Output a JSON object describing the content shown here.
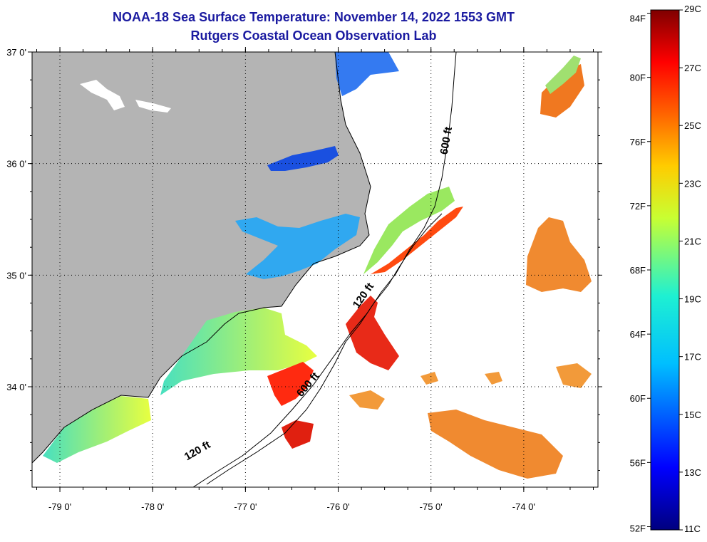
{
  "title": {
    "line1": "NOAA-18 Sea Surface Temperature:  November 14, 2022 1553 GMT",
    "line2": "Rutgers Coastal Ocean Observation Lab"
  },
  "map": {
    "lon_range": [
      -79.3,
      -73.2
    ],
    "lat_range": [
      33.1,
      37.0
    ],
    "lat_ticks": [
      {
        "value": 37.0,
        "label": "37 0'"
      },
      {
        "value": 36.0,
        "label": "36 0'"
      },
      {
        "value": 35.0,
        "label": "35 0'"
      },
      {
        "value": 34.0,
        "label": "34 0'"
      }
    ],
    "lon_ticks": [
      {
        "value": -79.0,
        "label": "-79 0'"
      },
      {
        "value": -78.0,
        "label": "-78 0'"
      },
      {
        "value": -77.0,
        "label": "-77 0'"
      },
      {
        "value": -76.0,
        "label": "-76 0'"
      },
      {
        "value": -75.0,
        "label": "-75 0'"
      },
      {
        "value": -74.0,
        "label": "-74 0'"
      }
    ],
    "contour_labels": [
      {
        "text": "600 ft",
        "lon": -74.8,
        "lat": 36.2
      },
      {
        "text": "120 ft",
        "lon": -75.7,
        "lat": 34.8
      },
      {
        "text": "600 ft",
        "lon": -76.3,
        "lat": 34.0
      },
      {
        "text": "120 ft",
        "lon": -77.5,
        "lat": 33.4
      }
    ],
    "colors": {
      "land": "#b4b4b4",
      "water_nodata": "#ffffff"
    }
  },
  "colorbar": {
    "min_c": 11,
    "max_c": 29,
    "f_labels": [
      "84F",
      "80F",
      "76F",
      "72F",
      "68F",
      "64F",
      "60F",
      "56F",
      "52F"
    ],
    "c_labels": [
      "29C",
      "27C",
      "25C",
      "23C",
      "21C",
      "19C",
      "17C",
      "15C",
      "13C",
      "11C"
    ]
  }
}
